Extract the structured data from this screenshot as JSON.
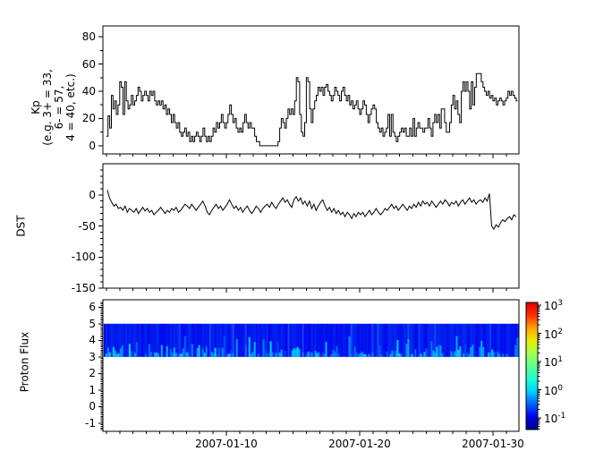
{
  "figure": {
    "bg": "#ffffff",
    "frame_color": "#000000",
    "line_color": "#000000"
  },
  "x_axis": {
    "domain_days": [
      0.74,
      31.95
    ],
    "minor_tick_interval_days": 1,
    "major_ticks": [
      {
        "day": 10,
        "label": "2007-01-10"
      },
      {
        "day": 20,
        "label": "2007-01-20"
      },
      {
        "day": 30,
        "label": "2007-01-30"
      }
    ]
  },
  "chart_data": [
    {
      "type": "line",
      "line_style": "step",
      "ylabel": "Kp\n(e.g. 3+ = 33,\n6- = 57,\n4 = 40, etc.)",
      "ylim": [
        -6,
        88
      ],
      "yticks": [
        0,
        20,
        40,
        60,
        80
      ],
      "yminor_step": 10,
      "x_start_day": 1.0,
      "x_step_days": 0.125,
      "values": [
        7,
        22,
        13,
        37,
        27,
        33,
        23,
        30,
        47,
        43,
        23,
        47,
        33,
        27,
        30,
        37,
        30,
        33,
        37,
        43,
        40,
        33,
        37,
        40,
        37,
        33,
        40,
        37,
        40,
        33,
        30,
        33,
        30,
        33,
        27,
        30,
        23,
        27,
        23,
        17,
        23,
        17,
        13,
        17,
        10,
        7,
        10,
        13,
        7,
        10,
        3,
        7,
        3,
        7,
        10,
        7,
        3,
        7,
        13,
        7,
        3,
        7,
        3,
        7,
        13,
        10,
        17,
        13,
        17,
        23,
        17,
        13,
        17,
        23,
        30,
        23,
        17,
        20,
        13,
        10,
        13,
        10,
        17,
        23,
        17,
        13,
        17,
        13,
        13,
        7,
        3,
        3,
        0,
        0,
        0,
        0,
        0,
        0,
        0,
        0,
        0,
        0,
        0,
        3,
        13,
        20,
        17,
        13,
        20,
        27,
        23,
        27,
        23,
        33,
        50,
        47,
        23,
        10,
        7,
        17,
        50,
        47,
        27,
        17,
        27,
        33,
        37,
        43,
        40,
        43,
        37,
        43,
        45,
        40,
        37,
        33,
        37,
        43,
        40,
        37,
        33,
        40,
        43,
        37,
        33,
        37,
        30,
        33,
        27,
        30,
        33,
        27,
        23,
        27,
        33,
        30,
        23,
        17,
        23,
        27,
        30,
        27,
        17,
        13,
        10,
        13,
        7,
        10,
        13,
        23,
        7,
        23,
        10,
        7,
        3,
        7,
        10,
        13,
        10,
        13,
        7,
        7,
        13,
        7,
        20,
        7,
        13,
        17,
        13,
        13,
        10,
        13,
        13,
        20,
        13,
        7,
        17,
        23,
        17,
        23,
        13,
        27,
        27,
        17,
        10,
        10,
        17,
        30,
        37,
        27,
        33,
        23,
        17,
        40,
        47,
        40,
        47,
        40,
        27,
        47,
        30,
        43,
        53,
        53,
        53,
        47,
        43,
        40,
        37,
        40,
        35,
        37,
        33,
        35,
        30,
        33,
        35,
        33,
        30,
        33,
        35,
        40,
        37,
        40,
        37,
        35,
        33,
        35
      ]
    },
    {
      "type": "line",
      "line_style": "linear",
      "ylabel": "DST",
      "ylim": [
        -150,
        50
      ],
      "yticks": [
        0,
        -50,
        -100,
        -150
      ],
      "yminor_step": 10,
      "x_start_day": 1.07,
      "x_step_days": 0.16667,
      "values": [
        8,
        -5,
        -12,
        -18,
        -15,
        -22,
        -20,
        -25,
        -18,
        -28,
        -22,
        -25,
        -28,
        -22,
        -30,
        -25,
        -20,
        -26,
        -22,
        -28,
        -25,
        -32,
        -28,
        -25,
        -20,
        -25,
        -30,
        -25,
        -28,
        -22,
        -25,
        -20,
        -28,
        -25,
        -20,
        -15,
        -18,
        -22,
        -15,
        -20,
        -25,
        -20,
        -15,
        -10,
        -18,
        -28,
        -32,
        -25,
        -20,
        -15,
        -22,
        -18,
        -25,
        -20,
        -15,
        -8,
        -15,
        -22,
        -18,
        -25,
        -20,
        -28,
        -22,
        -18,
        -25,
        -30,
        -25,
        -18,
        -22,
        -28,
        -22,
        -18,
        -15,
        -20,
        -12,
        -18,
        -22,
        -15,
        -10,
        -5,
        -12,
        -8,
        -15,
        -20,
        -8,
        -3,
        -10,
        -5,
        -15,
        -10,
        -18,
        -10,
        -22,
        -15,
        -25,
        -18,
        -12,
        -8,
        -18,
        -25,
        -20,
        -28,
        -22,
        -30,
        -25,
        -32,
        -28,
        -35,
        -28,
        -32,
        -38,
        -30,
        -35,
        -28,
        -32,
        -28,
        -35,
        -30,
        -25,
        -32,
        -28,
        -22,
        -28,
        -32,
        -28,
        -22,
        -25,
        -20,
        -15,
        -22,
        -18,
        -25,
        -20,
        -15,
        -20,
        -25,
        -18,
        -22,
        -15,
        -20,
        -12,
        -18,
        -10,
        -15,
        -12,
        -18,
        -10,
        -15,
        -20,
        -15,
        -10,
        -15,
        -8,
        -12,
        -18,
        -12,
        -15,
        -10,
        -18,
        -12,
        -8,
        -15,
        -10,
        -5,
        -12,
        -8,
        -15,
        -10,
        -8,
        -12,
        -5,
        -10,
        2,
        -50,
        -55,
        -48,
        -52,
        -45,
        -40,
        -43,
        -38,
        -35,
        -40,
        -32,
        -35,
        -30
      ]
    },
    {
      "type": "heatmap",
      "ylabel": "Proton Flux",
      "ylim": [
        -1.5,
        6.45
      ],
      "yticks": [
        -1,
        0,
        1,
        2,
        3,
        4,
        5,
        6
      ],
      "yminor_step": 0.1,
      "band": {
        "vmin": 3,
        "vmax": 5,
        "x_start_day": 0.8,
        "x_end_day": 31.9,
        "strips": 232,
        "seed": 1234,
        "base_rgb": [
          0,
          18,
          238
        ],
        "streak_rgb": [
          0,
          140,
          255
        ]
      }
    }
  ],
  "colorbar": {
    "base": "10",
    "tick_exponents": [
      3,
      2,
      1,
      0,
      -1
    ],
    "range_exp": [
      -1.41,
      3.1
    ],
    "gradient_stops": [
      [
        0.0,
        "#000080"
      ],
      [
        0.1,
        "#0000f0"
      ],
      [
        0.2,
        "#0060ff"
      ],
      [
        0.3,
        "#00d0ff"
      ],
      [
        0.4,
        "#20ffd0"
      ],
      [
        0.5,
        "#60ff90"
      ],
      [
        0.6,
        "#a0ff50"
      ],
      [
        0.7,
        "#e8ee00"
      ],
      [
        0.8,
        "#ffa000"
      ],
      [
        0.9,
        "#ff3000"
      ],
      [
        1.0,
        "#dd0000"
      ]
    ]
  }
}
